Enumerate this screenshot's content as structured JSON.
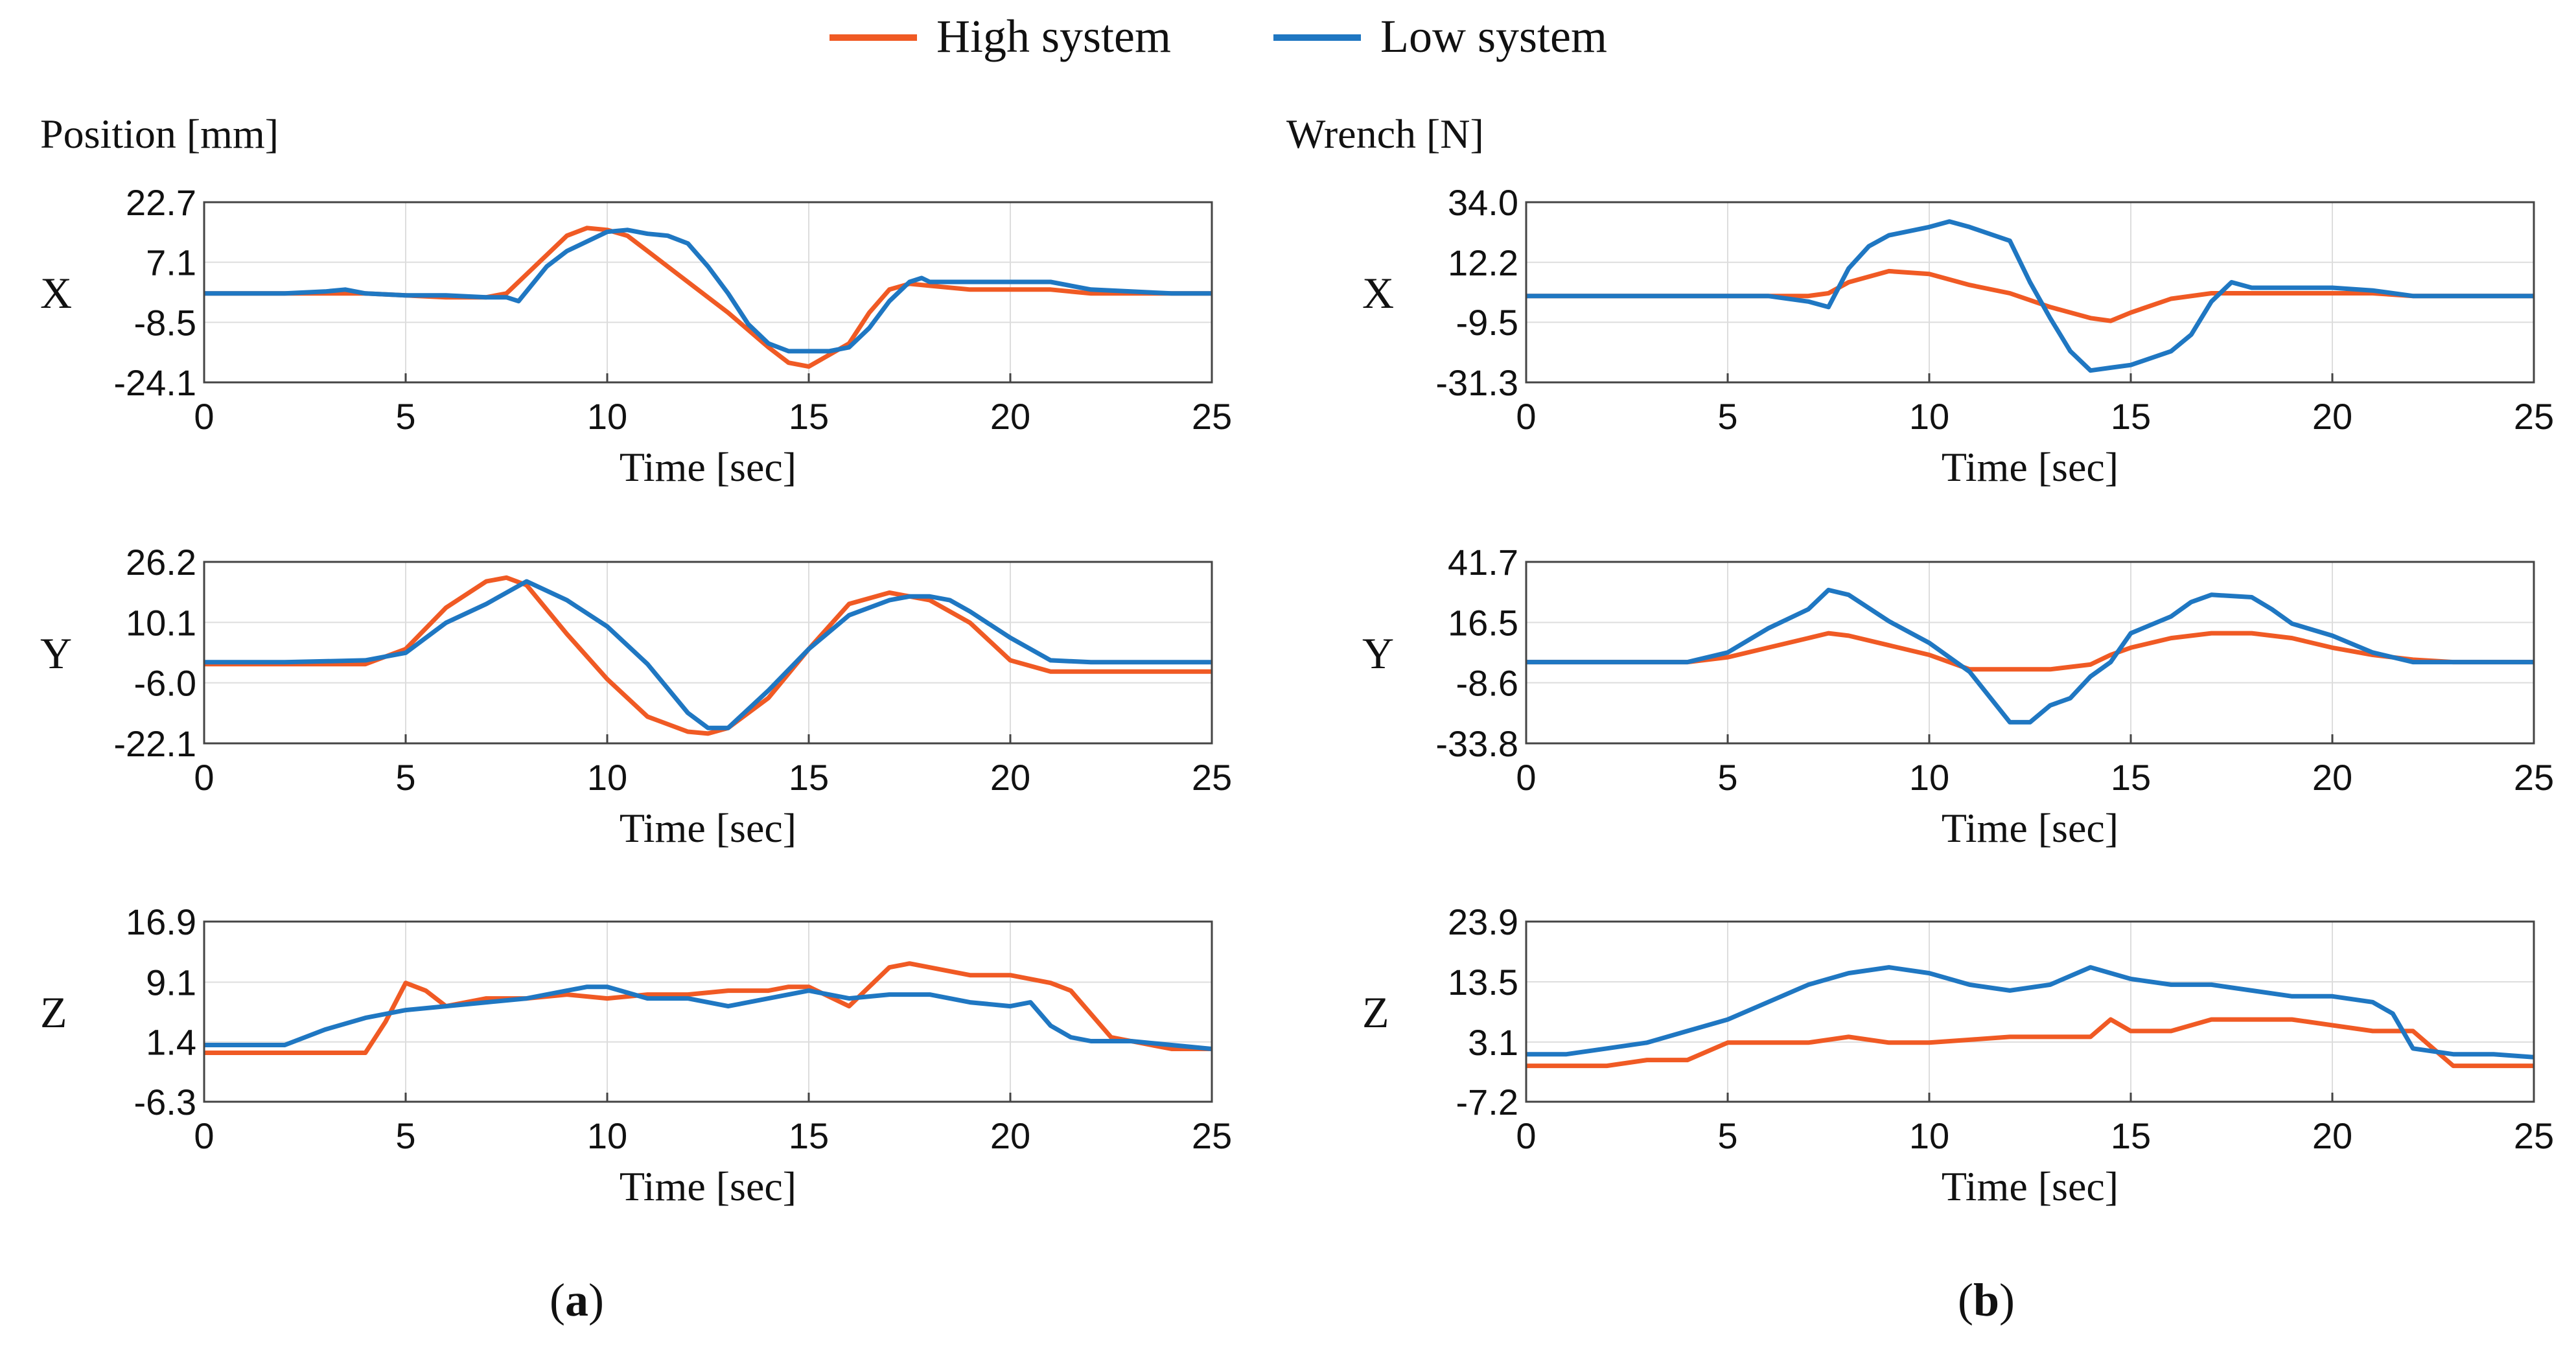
{
  "legend": {
    "items": [
      {
        "label": "High system",
        "color": "#F05A24"
      },
      {
        "label": "Low system",
        "color": "#1F77C2"
      }
    ],
    "placement": "top-center"
  },
  "panels": [
    {
      "id": "a",
      "header": "Position [mm]",
      "caption": "(a)",
      "caption_letter": "a"
    },
    {
      "id": "b",
      "header": "Wrench [N]",
      "caption": "(b)",
      "caption_letter": "b"
    }
  ],
  "colors": {
    "high": "#F05A24",
    "low": "#1F77C2",
    "grid": "#DDDDDD",
    "axis": "#444444"
  },
  "chart_data": [
    {
      "type": "line",
      "panel": "a",
      "row_label": "X",
      "xlabel": "Time [sec]",
      "ylabel": "Position [mm]",
      "xlim": [
        0,
        25
      ],
      "xticks": [
        0,
        5,
        10,
        15,
        20,
        25
      ],
      "ylim": [
        -24.1,
        22.7
      ],
      "yticks": [
        "22.7",
        "7.1",
        "-8.5",
        "-24.1"
      ],
      "series": [
        {
          "name": "High system",
          "x": [
            0,
            2,
            4,
            5,
            6,
            7,
            7.5,
            8,
            9,
            9.5,
            10,
            10.5,
            11,
            12,
            13,
            14,
            14.5,
            15,
            15.5,
            16,
            16.5,
            17,
            17.5,
            18,
            19,
            20,
            21,
            22,
            23,
            24,
            25
          ],
          "y": [
            -1,
            -1,
            -1,
            -1.5,
            -2,
            -2,
            -1,
            4,
            14,
            16,
            15.5,
            14,
            10,
            2,
            -6,
            -15,
            -19,
            -20,
            -17,
            -14,
            -6,
            0,
            1.5,
            1,
            0,
            0,
            0,
            -1,
            -1,
            -1,
            -1
          ]
        },
        {
          "name": "Low system",
          "x": [
            0,
            2,
            3,
            3.5,
            4,
            5,
            6,
            7,
            7.5,
            7.8,
            8.5,
            9,
            10,
            10.5,
            11,
            11.5,
            12,
            12.5,
            13,
            13.5,
            14,
            14.5,
            15,
            15.5,
            16,
            16.5,
            17,
            17.5,
            17.8,
            18,
            19,
            20,
            21,
            22,
            23,
            24,
            25
          ],
          "y": [
            -1,
            -1,
            -0.5,
            0,
            -1,
            -1.5,
            -1.5,
            -2,
            -2,
            -3,
            6,
            10,
            15,
            15.5,
            14.5,
            14,
            12,
            6,
            -1,
            -9,
            -14,
            -16,
            -16,
            -16,
            -15,
            -10,
            -3,
            2,
            3,
            2,
            2,
            2,
            2,
            0,
            -0.5,
            -1,
            -1
          ]
        }
      ]
    },
    {
      "type": "line",
      "panel": "a",
      "row_label": "Y",
      "xlabel": "Time [sec]",
      "ylabel": "Position [mm]",
      "xlim": [
        0,
        25
      ],
      "xticks": [
        0,
        5,
        10,
        15,
        20,
        25
      ],
      "ylim": [
        -22.1,
        26.2
      ],
      "yticks": [
        "26.2",
        "10.1",
        "-6.0",
        "-22.1"
      ],
      "series": [
        {
          "name": "High system",
          "x": [
            0,
            2,
            4,
            5,
            6,
            7,
            7.5,
            8,
            9,
            10,
            11,
            12,
            12.5,
            13,
            14,
            15,
            16,
            17,
            18,
            19,
            20,
            21,
            22,
            23,
            24,
            25
          ],
          "y": [
            -1,
            -1,
            -1,
            3,
            14,
            21,
            22,
            20,
            7,
            -5,
            -15,
            -19,
            -19.5,
            -18,
            -10,
            3,
            15,
            18,
            16,
            10,
            0,
            -3,
            -3,
            -3,
            -3,
            -3
          ]
        },
        {
          "name": "Low system",
          "x": [
            0,
            2,
            4,
            5,
            6,
            7,
            7.5,
            8,
            9,
            10,
            11,
            12,
            12.5,
            13,
            14,
            15,
            16,
            17,
            17.5,
            18,
            18.5,
            19,
            20,
            21,
            22,
            23,
            24,
            25
          ],
          "y": [
            -0.5,
            -0.5,
            0,
            2,
            10,
            15,
            18,
            21,
            16,
            9,
            -1,
            -14,
            -18,
            -18,
            -8,
            3,
            12,
            16,
            17,
            17,
            16,
            13,
            6,
            0,
            -0.5,
            -0.5,
            -0.5,
            -0.5
          ]
        }
      ]
    },
    {
      "type": "line",
      "panel": "a",
      "row_label": "Z",
      "xlabel": "Time [sec]",
      "ylabel": "Position [mm]",
      "xlim": [
        0,
        25
      ],
      "xticks": [
        0,
        5,
        10,
        15,
        20,
        25
      ],
      "ylim": [
        -6.3,
        16.9
      ],
      "yticks": [
        "16.9",
        "9.1",
        "1.4",
        "-6.3"
      ],
      "series": [
        {
          "name": "High system",
          "x": [
            0,
            1,
            2,
            3,
            4,
            4.5,
            5,
            5.5,
            6,
            7,
            8,
            9,
            10,
            11,
            12,
            13,
            14,
            14.5,
            15,
            16,
            17,
            17.5,
            18,
            19,
            20,
            21,
            21.5,
            22,
            22.5,
            23,
            24,
            25
          ],
          "y": [
            0,
            0,
            0,
            0,
            0,
            4,
            9,
            8,
            6,
            7,
            7,
            7.5,
            7,
            7.5,
            7.5,
            8,
            8,
            8.5,
            8.5,
            6,
            11,
            11.5,
            11,
            10,
            10,
            9,
            8,
            5,
            2,
            1.5,
            0.5,
            0.5
          ]
        },
        {
          "name": "Low system",
          "x": [
            0,
            1,
            2,
            3,
            4,
            5,
            6,
            7,
            8,
            9,
            9.5,
            10,
            11,
            12,
            13,
            14,
            15,
            16,
            17,
            18,
            19,
            20,
            20.5,
            21,
            21.5,
            22,
            23,
            24,
            25
          ],
          "y": [
            1,
            1,
            1,
            3,
            4.5,
            5.5,
            6,
            6.5,
            7,
            8,
            8.5,
            8.5,
            7,
            7,
            6,
            7,
            8,
            7,
            7.5,
            7.5,
            6.5,
            6,
            6.5,
            3.5,
            2,
            1.5,
            1.5,
            1,
            0.5
          ]
        }
      ]
    },
    {
      "type": "line",
      "panel": "b",
      "row_label": "X",
      "xlabel": "Time [sec]",
      "ylabel": "Wrench [N]",
      "xlim": [
        0,
        25
      ],
      "xticks": [
        0,
        5,
        10,
        15,
        20,
        25
      ],
      "ylim": [
        -31.3,
        34.0
      ],
      "yticks": [
        "34.0",
        "12.2",
        "-9.5",
        "-31.3"
      ],
      "series": [
        {
          "name": "High system",
          "x": [
            0,
            2,
            4,
            6,
            7,
            7.5,
            8,
            9,
            10,
            11,
            12,
            13,
            14,
            14.5,
            15,
            16,
            17,
            18,
            19,
            20,
            21,
            22,
            23,
            24,
            25
          ],
          "y": [
            0,
            0,
            0,
            0,
            0,
            1,
            5,
            9,
            8,
            4,
            1,
            -4,
            -8,
            -9,
            -6,
            -1,
            1,
            1,
            1,
            1,
            1,
            0,
            0,
            0,
            0
          ]
        },
        {
          "name": "Low system",
          "x": [
            0,
            2,
            4,
            6,
            7,
            7.5,
            8,
            8.5,
            9,
            10,
            10.5,
            11,
            12,
            12.5,
            13,
            13.5,
            14,
            14.5,
            15,
            16,
            16.5,
            17,
            17.5,
            18,
            19,
            20,
            21,
            22,
            23,
            24,
            25
          ],
          "y": [
            0,
            0,
            0,
            0,
            -2,
            -4,
            10,
            18,
            22,
            25,
            27,
            25,
            20,
            5,
            -8,
            -20,
            -27,
            -26,
            -25,
            -20,
            -14,
            -2,
            5,
            3,
            3,
            3,
            2,
            0,
            0,
            0,
            0
          ]
        }
      ]
    },
    {
      "type": "line",
      "panel": "b",
      "row_label": "Y",
      "xlabel": "Time [sec]",
      "ylabel": "Wrench [N]",
      "xlim": [
        0,
        25
      ],
      "xticks": [
        0,
        5,
        10,
        15,
        20,
        25
      ],
      "ylim": [
        -33.8,
        41.7
      ],
      "yticks": [
        "41.7",
        "16.5",
        "-8.6",
        "-33.8"
      ],
      "series": [
        {
          "name": "High system",
          "x": [
            0,
            2,
            3,
            4,
            5,
            6,
            7,
            7.5,
            8,
            9,
            10,
            11,
            12,
            13,
            14,
            14.5,
            15,
            16,
            17,
            18,
            19,
            20,
            21,
            22,
            23,
            24,
            25
          ],
          "y": [
            0,
            0,
            0,
            0,
            2,
            6,
            10,
            12,
            11,
            7,
            3,
            -3,
            -3,
            -3,
            -1,
            3,
            6,
            10,
            12,
            12,
            10,
            6,
            3,
            1,
            0,
            0,
            0
          ]
        },
        {
          "name": "Low system",
          "x": [
            0,
            2,
            3,
            4,
            5,
            6,
            7,
            7.5,
            8,
            9,
            10,
            11,
            12,
            12.5,
            13,
            13.5,
            14,
            14.5,
            15,
            16,
            16.5,
            17,
            18,
            18.5,
            19,
            20,
            21,
            22,
            23,
            24,
            25
          ],
          "y": [
            0,
            0,
            0,
            0,
            4,
            14,
            22,
            30,
            28,
            17,
            8,
            -4,
            -25,
            -25,
            -18,
            -15,
            -6,
            0,
            12,
            19,
            25,
            28,
            27,
            22,
            16,
            11,
            4,
            0,
            0,
            0,
            0
          ]
        }
      ]
    },
    {
      "type": "line",
      "panel": "b",
      "row_label": "Z",
      "xlabel": "Time [sec]",
      "ylabel": "Wrench [N]",
      "xlim": [
        0,
        25
      ],
      "xticks": [
        0,
        5,
        10,
        15,
        20,
        25
      ],
      "ylim": [
        -7.2,
        23.9
      ],
      "yticks": [
        "23.9",
        "13.5",
        "3.1",
        "-7.2"
      ],
      "series": [
        {
          "name": "High system",
          "x": [
            0,
            1,
            2,
            3,
            4,
            5,
            6,
            7,
            8,
            9,
            10,
            11,
            12,
            13,
            14,
            14.5,
            15,
            16,
            17,
            18,
            19,
            20,
            21,
            22,
            22.5,
            23,
            24,
            25
          ],
          "y": [
            -1,
            -1,
            -1,
            0,
            0,
            3,
            3,
            3,
            4,
            3,
            3,
            3.5,
            4,
            4,
            4,
            7,
            5,
            5,
            7,
            7,
            7,
            6,
            5,
            5,
            2,
            -1,
            -1,
            -1
          ]
        },
        {
          "name": "Low system",
          "x": [
            0,
            1,
            2,
            3,
            4,
            5,
            6,
            7,
            8,
            9,
            10,
            11,
            12,
            13,
            14,
            15,
            16,
            17,
            18,
            19,
            20,
            21,
            21.5,
            22,
            23,
            24,
            25
          ],
          "y": [
            1,
            1,
            2,
            3,
            5,
            7,
            10,
            13,
            15,
            16,
            15,
            13,
            12,
            13,
            16,
            14,
            13,
            13,
            12,
            11,
            11,
            10,
            8,
            2,
            1,
            1,
            0.5
          ]
        }
      ]
    }
  ]
}
